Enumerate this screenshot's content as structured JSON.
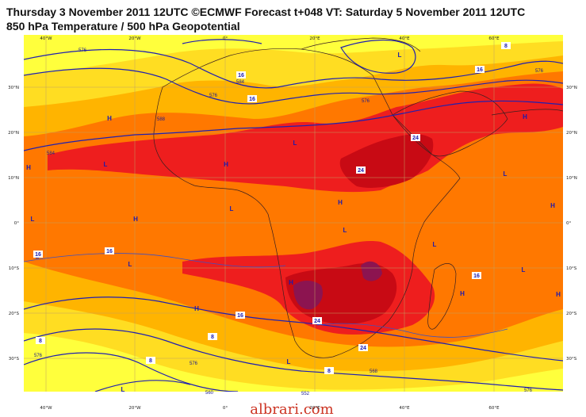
{
  "title_line1": "Thursday 3 November 2011 12UTC ©ECMWF Forecast t+048 VT: Saturday 5 November 2011 12UTC",
  "title_line2": "850 hPa Temperature / 500 hPa Geopotential",
  "lon_labels": [
    "40°W",
    "20°W",
    "0°",
    "20°E",
    "40°E",
    "60°E"
  ],
  "lat_labels": [
    "30°N",
    "20°N",
    "10°N",
    "0°",
    "10°S",
    "20°S",
    "30°S"
  ],
  "pressure_centers": [
    "H",
    "L"
  ],
  "geopotential_values": [
    "576",
    "584",
    "588",
    "568",
    "560",
    "552"
  ],
  "temperature_values": [
    "8",
    "16",
    "24"
  ],
  "watermark": "albrari.com",
  "colors": {
    "temp_0_8": "#ffff3c",
    "temp_8_12": "#ffdd22",
    "temp_12_16": "#ffb400",
    "temp_16_20": "#ff7800",
    "temp_20_24": "#ee1e1e",
    "temp_24_28": "#c80a14",
    "temp_28_32": "#8c1450",
    "contour": "#2020b0",
    "coast": "#3a2020"
  }
}
